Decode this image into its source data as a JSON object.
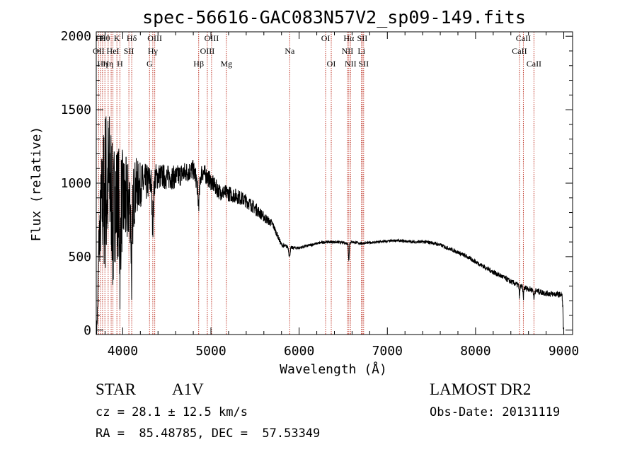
{
  "header": {
    "title": "spec-56616-GAC083N57V2_sp09-149.fits"
  },
  "footer": {
    "object_class": "STAR",
    "subclass": "A1V",
    "survey": "LAMOST DR2",
    "redshift_text": "cz = 28.1 ± 12.5 km/s",
    "obs_date": "Obs-Date: 20131119",
    "coords_text": "RA =  85.48785, DEC =  57.53349"
  },
  "colors": {
    "spectrum": "#000000",
    "line_markers": "#c0392b",
    "axes": "#000000",
    "background": "#ffffff"
  },
  "chart_data": {
    "type": "line",
    "title": "spec-56616-GAC083N57V2_sp09-149.fits",
    "xlabel": "Wavelength (Å)",
    "ylabel": "Flux (relative)",
    "xlim": [
      3700,
      9100
    ],
    "ylim": [
      -30,
      2030
    ],
    "grid": false,
    "x_ticks": [
      4000,
      5000,
      6000,
      7000,
      8000,
      9000
    ],
    "y_ticks": [
      0,
      500,
      1000,
      1500,
      2000
    ],
    "series": [
      {
        "continuum": [
          [
            3705,
            0
          ],
          [
            3715,
            150
          ],
          [
            3730,
            600
          ],
          [
            3760,
            850
          ],
          [
            3800,
            950
          ],
          [
            3850,
            1000
          ],
          [
            3900,
            880
          ],
          [
            3950,
            880
          ],
          [
            4000,
            870
          ],
          [
            4050,
            860
          ],
          [
            4100,
            870
          ],
          [
            4150,
            970
          ],
          [
            4200,
            990
          ],
          [
            4300,
            1010
          ],
          [
            4400,
            1050
          ],
          [
            4500,
            1040
          ],
          [
            4600,
            1040
          ],
          [
            4700,
            1070
          ],
          [
            4800,
            1090
          ],
          [
            4850,
            1000
          ],
          [
            4900,
            1080
          ],
          [
            4950,
            1050
          ],
          [
            5000,
            1010
          ],
          [
            5100,
            940
          ],
          [
            5200,
            930
          ],
          [
            5300,
            910
          ],
          [
            5400,
            880
          ],
          [
            5500,
            830
          ],
          [
            5600,
            770
          ],
          [
            5700,
            720
          ],
          [
            5750,
            650
          ],
          [
            5800,
            580
          ],
          [
            5900,
            560
          ],
          [
            6000,
            560
          ],
          [
            6100,
            575
          ],
          [
            6200,
            590
          ],
          [
            6300,
            600
          ],
          [
            6400,
            600
          ],
          [
            6500,
            595
          ],
          [
            6550,
            590
          ],
          [
            6600,
            600
          ],
          [
            6700,
            590
          ],
          [
            6800,
            595
          ],
          [
            6900,
            600
          ],
          [
            7000,
            605
          ],
          [
            7100,
            610
          ],
          [
            7200,
            605
          ],
          [
            7300,
            600
          ],
          [
            7400,
            600
          ],
          [
            7500,
            595
          ],
          [
            7600,
            580
          ],
          [
            7700,
            555
          ],
          [
            7800,
            530
          ],
          [
            7900,
            500
          ],
          [
            8000,
            465
          ],
          [
            8100,
            430
          ],
          [
            8200,
            395
          ],
          [
            8300,
            365
          ],
          [
            8400,
            330
          ],
          [
            8500,
            300
          ],
          [
            8600,
            280
          ],
          [
            8700,
            265
          ],
          [
            8800,
            250
          ],
          [
            8900,
            245
          ],
          [
            8980,
            240
          ],
          [
            8990,
            150
          ],
          [
            8995,
            0
          ]
        ],
        "noise": [
          [
            3700,
            0
          ],
          [
            3800,
            600
          ],
          [
            3900,
            430
          ],
          [
            4000,
            360
          ],
          [
            4100,
            260
          ],
          [
            4200,
            150
          ],
          [
            4400,
            90
          ],
          [
            4800,
            70
          ],
          [
            5000,
            60
          ],
          [
            5500,
            45
          ],
          [
            5800,
            15
          ],
          [
            6000,
            10
          ],
          [
            7000,
            8
          ],
          [
            8000,
            15
          ],
          [
            8500,
            20
          ],
          [
            9000,
            20
          ]
        ],
        "absorption": [
          {
            "x": 3889,
            "depth": 300,
            "width": 8
          },
          {
            "x": 3970,
            "depth": 400,
            "width": 8
          },
          {
            "x": 4102,
            "depth": 450,
            "width": 10
          },
          {
            "x": 4341,
            "depth": 300,
            "width": 12
          },
          {
            "x": 4861,
            "depth": 150,
            "width": 14
          },
          {
            "x": 5890,
            "depth": 60,
            "width": 10
          },
          {
            "x": 6563,
            "depth": 120,
            "width": 6
          },
          {
            "x": 8498,
            "depth": 70,
            "width": 6
          },
          {
            "x": 8542,
            "depth": 70,
            "width": 6
          },
          {
            "x": 8662,
            "depth": 60,
            "width": 6
          }
        ],
        "sample_step_angstrom": 2
      }
    ],
    "line_markers": [
      {
        "x": 3727,
        "label": "OII",
        "row": 1
      },
      {
        "x": 3750,
        "label": "Hθ",
        "row": 0
      },
      {
        "x": 3771,
        "label": "Hη",
        "row": 2
      },
      {
        "x": 3798,
        "label": "Hθ",
        "row": 0
      },
      {
        "x": 3835,
        "label": "Hη",
        "row": 2
      },
      {
        "x": 3869,
        "label": "",
        "row": 0
      },
      {
        "x": 3889,
        "label": "HeI",
        "row": 1
      },
      {
        "x": 3934,
        "label": "K",
        "row": 0
      },
      {
        "x": 3968,
        "label": "H",
        "row": 2
      },
      {
        "x": 4070,
        "label": "SII",
        "row": 1
      },
      {
        "x": 4102,
        "label": "Hδ",
        "row": 0
      },
      {
        "x": 4304,
        "label": "G",
        "row": 2
      },
      {
        "x": 4341,
        "label": "Hγ",
        "row": 1
      },
      {
        "x": 4363,
        "label": "OIII",
        "row": 0
      },
      {
        "x": 4861,
        "label": "Hβ",
        "row": 2
      },
      {
        "x": 4959,
        "label": "OIII",
        "row": 1
      },
      {
        "x": 5007,
        "label": "OIII",
        "row": 0
      },
      {
        "x": 5175,
        "label": "Mg",
        "row": 2
      },
      {
        "x": 5893,
        "label": "Na",
        "row": 1
      },
      {
        "x": 6300,
        "label": "OI",
        "row": 0
      },
      {
        "x": 6364,
        "label": "OI",
        "row": 2
      },
      {
        "x": 6548,
        "label": "NII",
        "row": 1
      },
      {
        "x": 6563,
        "label": "Hα",
        "row": 0
      },
      {
        "x": 6583,
        "label": "NII",
        "row": 2
      },
      {
        "x": 6707,
        "label": "Li",
        "row": 1
      },
      {
        "x": 6716,
        "label": "SII",
        "row": 0
      },
      {
        "x": 6731,
        "label": "SII",
        "row": 2
      },
      {
        "x": 8498,
        "label": "CaII",
        "row": 1
      },
      {
        "x": 8542,
        "label": "CaII",
        "row": 0
      },
      {
        "x": 8662,
        "label": "CaII",
        "row": 2
      }
    ]
  }
}
